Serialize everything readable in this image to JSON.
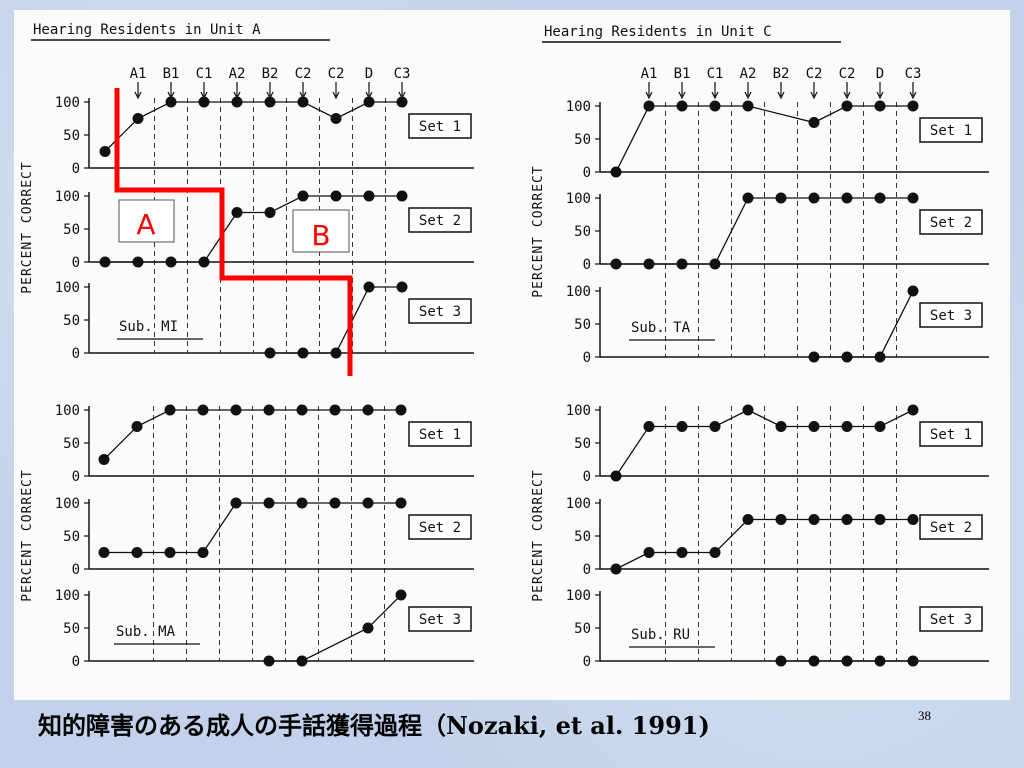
{
  "slide": {
    "caption_jp": "知的障害のある成人の手話獲得過程",
    "caption_en": "（Nozaki, et al. 1991)",
    "number": "38"
  },
  "annotations": {
    "marker_a": "A",
    "marker_b": "B",
    "marker_color": "#ff0000"
  },
  "chart_data": [
    {
      "type": "line",
      "unit_title": "Hearing Residents in Unit A",
      "subject": "Sub. MI",
      "ylabel": "PERCENT CORRECT",
      "session_labels": [
        "A1",
        "B1",
        "C1",
        "A2",
        "B2",
        "C2",
        "C2",
        "D",
        "C3"
      ],
      "ylim": [
        0,
        100
      ],
      "yticks": [
        0,
        50,
        100
      ],
      "panels": [
        {
          "set": "Set 1",
          "points": [
            [
              0,
              25
            ],
            [
              1,
              75
            ],
            [
              2,
              100
            ],
            [
              3,
              100
            ],
            [
              4,
              100
            ],
            [
              5,
              100
            ],
            [
              6,
              100
            ],
            [
              7,
              75
            ],
            [
              8,
              100
            ],
            [
              9,
              100
            ]
          ]
        },
        {
          "set": "Set 2",
          "points": [
            [
              0,
              0
            ],
            [
              1,
              0
            ],
            [
              2,
              0
            ],
            [
              3,
              0
            ],
            [
              4,
              75
            ],
            [
              5,
              75
            ],
            [
              6,
              100
            ],
            [
              7,
              100
            ],
            [
              8,
              100
            ],
            [
              9,
              100
            ]
          ]
        },
        {
          "set": "Set 3",
          "points": [
            [
              5,
              0
            ],
            [
              6,
              0
            ],
            [
              7,
              0
            ],
            [
              8,
              100
            ],
            [
              9,
              100
            ]
          ]
        }
      ]
    },
    {
      "type": "line",
      "unit_title": "Hearing Residents in Unit C",
      "subject": "Sub. TA",
      "ylabel": "PERCENT CORRECT",
      "session_labels": [
        "A1",
        "B1",
        "C1",
        "A2",
        "B2",
        "C2",
        "C2",
        "D",
        "C3"
      ],
      "ylim": [
        0,
        100
      ],
      "yticks": [
        0,
        50,
        100
      ],
      "panels": [
        {
          "set": "Set 1",
          "points": [
            [
              0,
              0
            ],
            [
              1,
              100
            ],
            [
              2,
              100
            ],
            [
              3,
              100
            ],
            [
              4,
              100
            ],
            [
              6,
              75
            ],
            [
              7,
              100
            ],
            [
              8,
              100
            ],
            [
              9,
              100
            ]
          ]
        },
        {
          "set": "Set 2",
          "points": [
            [
              0,
              0
            ],
            [
              1,
              0
            ],
            [
              2,
              0
            ],
            [
              3,
              0
            ],
            [
              4,
              100
            ],
            [
              5,
              100
            ],
            [
              6,
              100
            ],
            [
              7,
              100
            ],
            [
              8,
              100
            ],
            [
              9,
              100
            ]
          ]
        },
        {
          "set": "Set 3",
          "points": [
            [
              6,
              0
            ],
            [
              7,
              0
            ],
            [
              8,
              0
            ],
            [
              9,
              100
            ]
          ]
        }
      ]
    },
    {
      "type": "line",
      "unit_title": "",
      "subject": "Sub. MA",
      "ylabel": "PERCENT CORRECT",
      "session_labels": [],
      "ylim": [
        0,
        100
      ],
      "yticks": [
        0,
        50,
        100
      ],
      "panels": [
        {
          "set": "Set 1",
          "points": [
            [
              0,
              25
            ],
            [
              1,
              75
            ],
            [
              2,
              100
            ],
            [
              3,
              100
            ],
            [
              4,
              100
            ],
            [
              5,
              100
            ],
            [
              6,
              100
            ],
            [
              7,
              100
            ],
            [
              8,
              100
            ],
            [
              9,
              100
            ]
          ]
        },
        {
          "set": "Set 2",
          "points": [
            [
              0,
              25
            ],
            [
              1,
              25
            ],
            [
              2,
              25
            ],
            [
              3,
              25
            ],
            [
              4,
              100
            ],
            [
              5,
              100
            ],
            [
              6,
              100
            ],
            [
              7,
              100
            ],
            [
              8,
              100
            ],
            [
              9,
              100
            ]
          ]
        },
        {
          "set": "Set 3",
          "points": [
            [
              5,
              0
            ],
            [
              6,
              0
            ],
            [
              8,
              50
            ],
            [
              9,
              100
            ]
          ]
        }
      ]
    },
    {
      "type": "line",
      "unit_title": "",
      "subject": "Sub. RU",
      "ylabel": "PERCENT CORRECT",
      "session_labels": [],
      "ylim": [
        0,
        100
      ],
      "yticks": [
        0,
        50,
        100
      ],
      "panels": [
        {
          "set": "Set 1",
          "points": [
            [
              0,
              0
            ],
            [
              1,
              75
            ],
            [
              2,
              75
            ],
            [
              3,
              75
            ],
            [
              4,
              100
            ],
            [
              5,
              75
            ],
            [
              6,
              75
            ],
            [
              7,
              75
            ],
            [
              8,
              75
            ],
            [
              9,
              100
            ]
          ]
        },
        {
          "set": "Set 2",
          "points": [
            [
              0,
              0
            ],
            [
              1,
              25
            ],
            [
              2,
              25
            ],
            [
              3,
              25
            ],
            [
              4,
              75
            ],
            [
              5,
              75
            ],
            [
              6,
              75
            ],
            [
              7,
              75
            ],
            [
              8,
              75
            ],
            [
              9,
              75
            ]
          ]
        },
        {
          "set": "Set 3",
          "points": [
            [
              5,
              0
            ],
            [
              6,
              0
            ],
            [
              7,
              0
            ],
            [
              8,
              0
            ],
            [
              9,
              0
            ]
          ]
        }
      ]
    }
  ]
}
